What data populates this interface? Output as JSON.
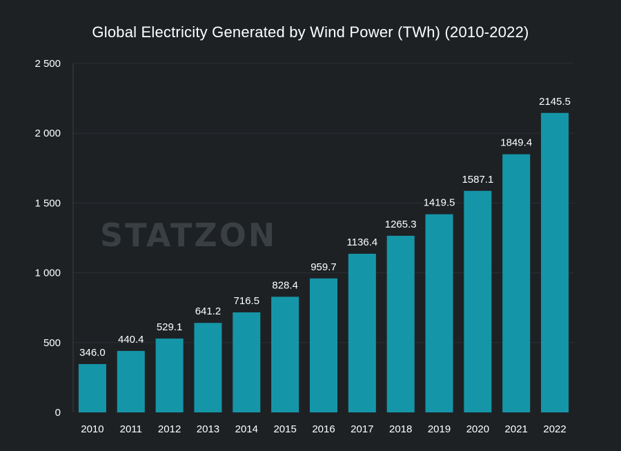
{
  "watermark": "STATZON",
  "chart_data": {
    "type": "bar",
    "title": "Global Electricity Generated by Wind Power (TWh) (2010-2022)",
    "xlabel": "",
    "ylabel": "",
    "categories": [
      "2010",
      "2011",
      "2012",
      "2013",
      "2014",
      "2015",
      "2016",
      "2017",
      "2018",
      "2019",
      "2020",
      "2021",
      "2022"
    ],
    "values": [
      346.0,
      440.4,
      529.1,
      641.2,
      716.5,
      828.4,
      959.7,
      1136.4,
      1265.3,
      1419.5,
      1587.1,
      1849.4,
      2145.5
    ],
    "value_labels": [
      "346.0",
      "440.4",
      "529.1",
      "641.2",
      "716.5",
      "828.4",
      "959.7",
      "1136.4",
      "1265.3",
      "1419.5",
      "1587.1",
      "1849.4",
      "2145.5"
    ],
    "ylim": [
      0,
      2500
    ],
    "yticks": [
      0,
      500,
      1000,
      1500,
      2000,
      2500
    ],
    "ytick_labels": [
      "0",
      "500",
      "1 000",
      "1 500",
      "2 000",
      "2 500"
    ],
    "grid": true,
    "legend": "none",
    "colors": {
      "bar": "#1596a8",
      "background": "#1e2124",
      "grid": "#2b3034",
      "text": "#ffffff"
    }
  }
}
